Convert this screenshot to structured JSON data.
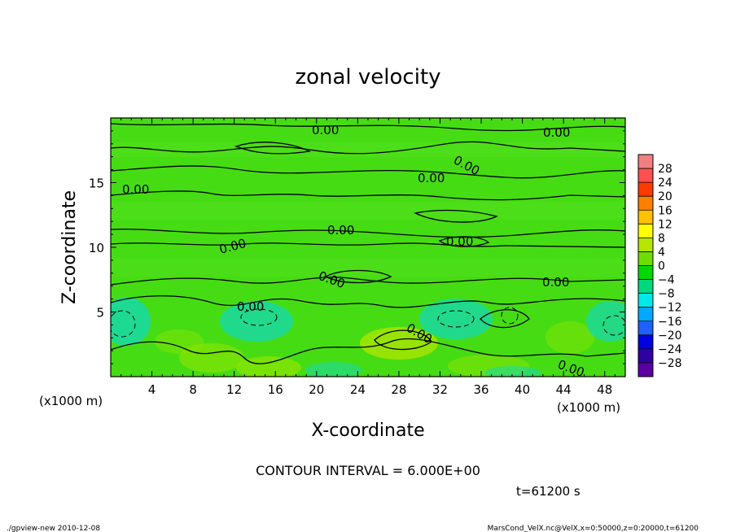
{
  "chart_data": {
    "type": "heatmap",
    "title": "zonal velocity",
    "xlabel": "X-coordinate",
    "ylabel": "Z-coordinate",
    "x_unit_left": "(x1000 m)",
    "x_unit_right": "(x1000 m)",
    "xlim": [
      0,
      50
    ],
    "ylim": [
      0,
      20
    ],
    "x_ticks": [
      4,
      8,
      12,
      16,
      20,
      24,
      28,
      32,
      36,
      40,
      44,
      48
    ],
    "y_ticks": [
      5,
      10,
      15
    ],
    "colorbar_levels": [
      28,
      24,
      20,
      16,
      12,
      8,
      4,
      0,
      -4,
      -8,
      -12,
      -16,
      -20,
      -24,
      -28
    ],
    "colorbar_colors": [
      "#f27f7f",
      "#ff5050",
      "#ff3a00",
      "#ff8000",
      "#ffc000",
      "#ffff00",
      "#b4e600",
      "#70dd00",
      "#00d800",
      "#00d880",
      "#00e8e8",
      "#00a8ff",
      "#2060ff",
      "#0000dd",
      "#3000a0",
      "#5a00a0"
    ],
    "contour_labels": [
      "0.00",
      "0.00",
      "0.00",
      "0.00",
      "0.00",
      "0.00",
      "0.00",
      "0.00",
      "0.00",
      "0.00",
      "0.00",
      "0.00",
      "0.00"
    ],
    "contour_interval_text": "CONTOUR INTERVAL = 6.000E+00",
    "time_text": "t=61200 s"
  },
  "footer": {
    "left": "./gpview-new  2010-12-08",
    "right": "MarsCond_VelX.nc@VelX,x=0:50000,z=0:20000,t=61200"
  }
}
